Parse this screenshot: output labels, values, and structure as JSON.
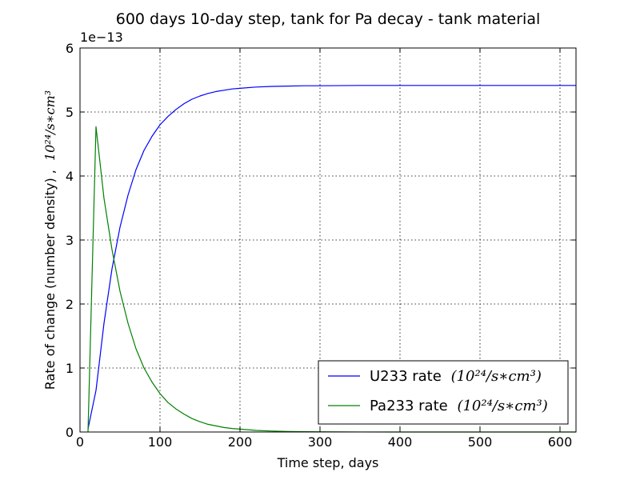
{
  "chart_data": {
    "type": "line",
    "title": "600 days 10-day step, tank for Pa decay - tank material",
    "xlabel": "Time step, days",
    "ylabel": "Rate of change (number density) ,",
    "ylabel_unit": "10²⁴/s∗cm³",
    "y_offset_text": "1e−13",
    "xlim": [
      0,
      620
    ],
    "ylim": [
      0,
      6
    ],
    "xticks": [
      0,
      100,
      200,
      300,
      400,
      500,
      600
    ],
    "yticks": [
      0,
      1,
      2,
      3,
      4,
      5,
      6
    ],
    "grid": true,
    "legend_position": "lower-right",
    "series": [
      {
        "name": "U233 rate",
        "legend_unit": "(10²⁴/s∗cm³)",
        "color": "#0000ff",
        "x": [
          10,
          20,
          30,
          40,
          50,
          60,
          70,
          80,
          90,
          100,
          110,
          120,
          130,
          140,
          150,
          160,
          170,
          180,
          190,
          200,
          220,
          240,
          260,
          280,
          300,
          350,
          400,
          450,
          500,
          550,
          600,
          620
        ],
        "y": [
          0.05,
          0.65,
          1.7,
          2.55,
          3.2,
          3.7,
          4.1,
          4.4,
          4.62,
          4.8,
          4.93,
          5.04,
          5.13,
          5.2,
          5.25,
          5.29,
          5.32,
          5.34,
          5.36,
          5.37,
          5.39,
          5.4,
          5.405,
          5.41,
          5.41,
          5.415,
          5.415,
          5.415,
          5.415,
          5.415,
          5.415,
          5.415
        ]
      },
      {
        "name": "Pa233 rate",
        "legend_unit": "(10²⁴/s∗cm³)",
        "color": "#008000",
        "x": [
          10,
          20,
          30,
          40,
          50,
          60,
          70,
          80,
          90,
          100,
          110,
          120,
          130,
          140,
          150,
          160,
          170,
          180,
          190,
          200,
          220,
          240,
          260,
          280,
          300,
          350,
          400,
          450,
          500,
          550,
          600,
          620
        ],
        "y": [
          0.0,
          4.77,
          3.65,
          2.85,
          2.2,
          1.7,
          1.3,
          1.0,
          0.78,
          0.6,
          0.46,
          0.36,
          0.28,
          0.21,
          0.16,
          0.12,
          0.095,
          0.07,
          0.055,
          0.045,
          0.025,
          0.015,
          0.008,
          0.005,
          0.003,
          0.001,
          0.0,
          0.0,
          0.0,
          0.0,
          0.0,
          0.0
        ]
      }
    ]
  }
}
